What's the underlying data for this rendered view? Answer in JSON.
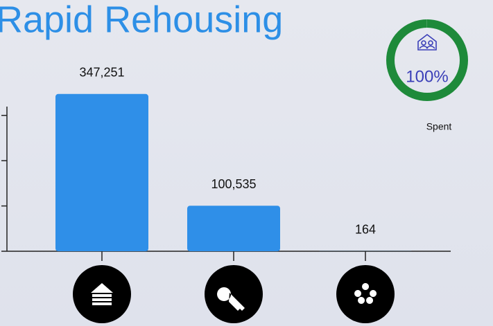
{
  "title": "Rapid Rehousing",
  "gauge": {
    "value": 100,
    "label": "100%",
    "caption": "Spent",
    "color": "#1e8a3a"
  },
  "chart_data": {
    "type": "bar",
    "categories": [
      null,
      null,
      null
    ],
    "values": [
      347251,
      100535,
      164
    ],
    "value_labels": [
      "347,251",
      "100,535",
      "164"
    ],
    "color": "#2f8fe8",
    "ylim": [
      0,
      350000
    ],
    "yticks": [
      0,
      100000,
      200000,
      300000
    ]
  }
}
